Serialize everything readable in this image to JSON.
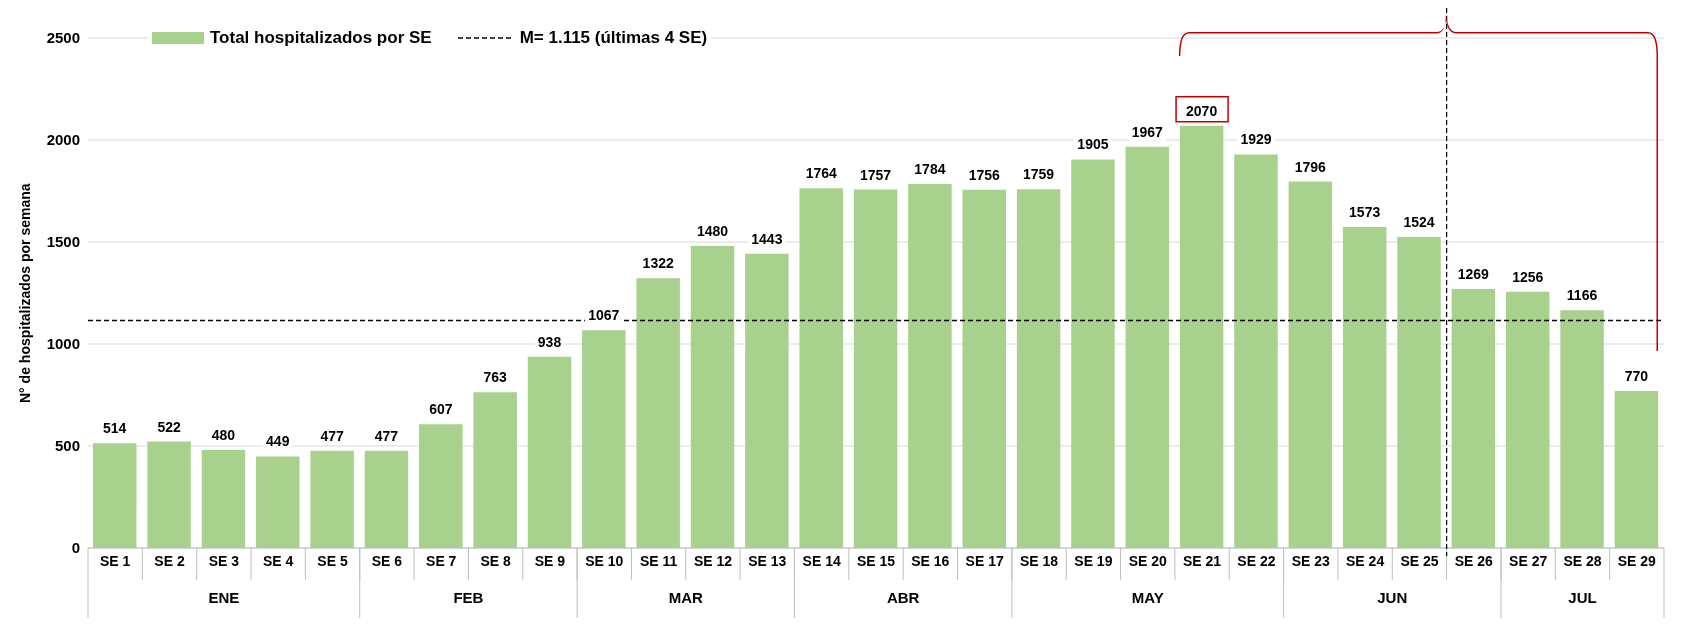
{
  "chart_data": {
    "type": "bar",
    "ylabel": "N° de hospitalizados por semana",
    "categories": [
      "SE 1",
      "SE 2",
      "SE 3",
      "SE 4",
      "SE 5",
      "SE 6",
      "SE 7",
      "SE 8",
      "SE 9",
      "SE 10",
      "SE 11",
      "SE 12",
      "SE 13",
      "SE 14",
      "SE 15",
      "SE 16",
      "SE 17",
      "SE 18",
      "SE 19",
      "SE 20",
      "SE 21",
      "SE 22",
      "SE 23",
      "SE 24",
      "SE 25",
      "SE 26",
      "SE 27",
      "SE 28",
      "SE 29"
    ],
    "series": [
      {
        "name": "Total hospitalizados por SE",
        "color": "#a9d18e",
        "values": [
          514,
          522,
          480,
          449,
          477,
          477,
          607,
          763,
          938,
          1067,
          1322,
          1480,
          1443,
          1764,
          1757,
          1784,
          1756,
          1759,
          1905,
          1967,
          2070,
          1929,
          1796,
          1573,
          1524,
          1269,
          1256,
          1166,
          770
        ]
      }
    ],
    "data_labels": true,
    "ylim": [
      0,
      2500
    ],
    "yticks": [
      0,
      500,
      1000,
      1500,
      2000,
      2500
    ],
    "grid": "y",
    "legend": "top left",
    "ref_lines": [
      {
        "axis": "y",
        "value": 1115,
        "label": "M= 1.115 (últimas 4 SE)",
        "color": "#000000",
        "line_style": "dashed"
      },
      {
        "axis": "x",
        "value": "SE 26",
        "label": null,
        "color": "#000000",
        "line_style": "dashed"
      }
    ],
    "annotations": [
      "ENE",
      "FEB",
      "MAR",
      "ABR",
      "MAY",
      "JUN",
      "JUL"
    ]
  }
}
